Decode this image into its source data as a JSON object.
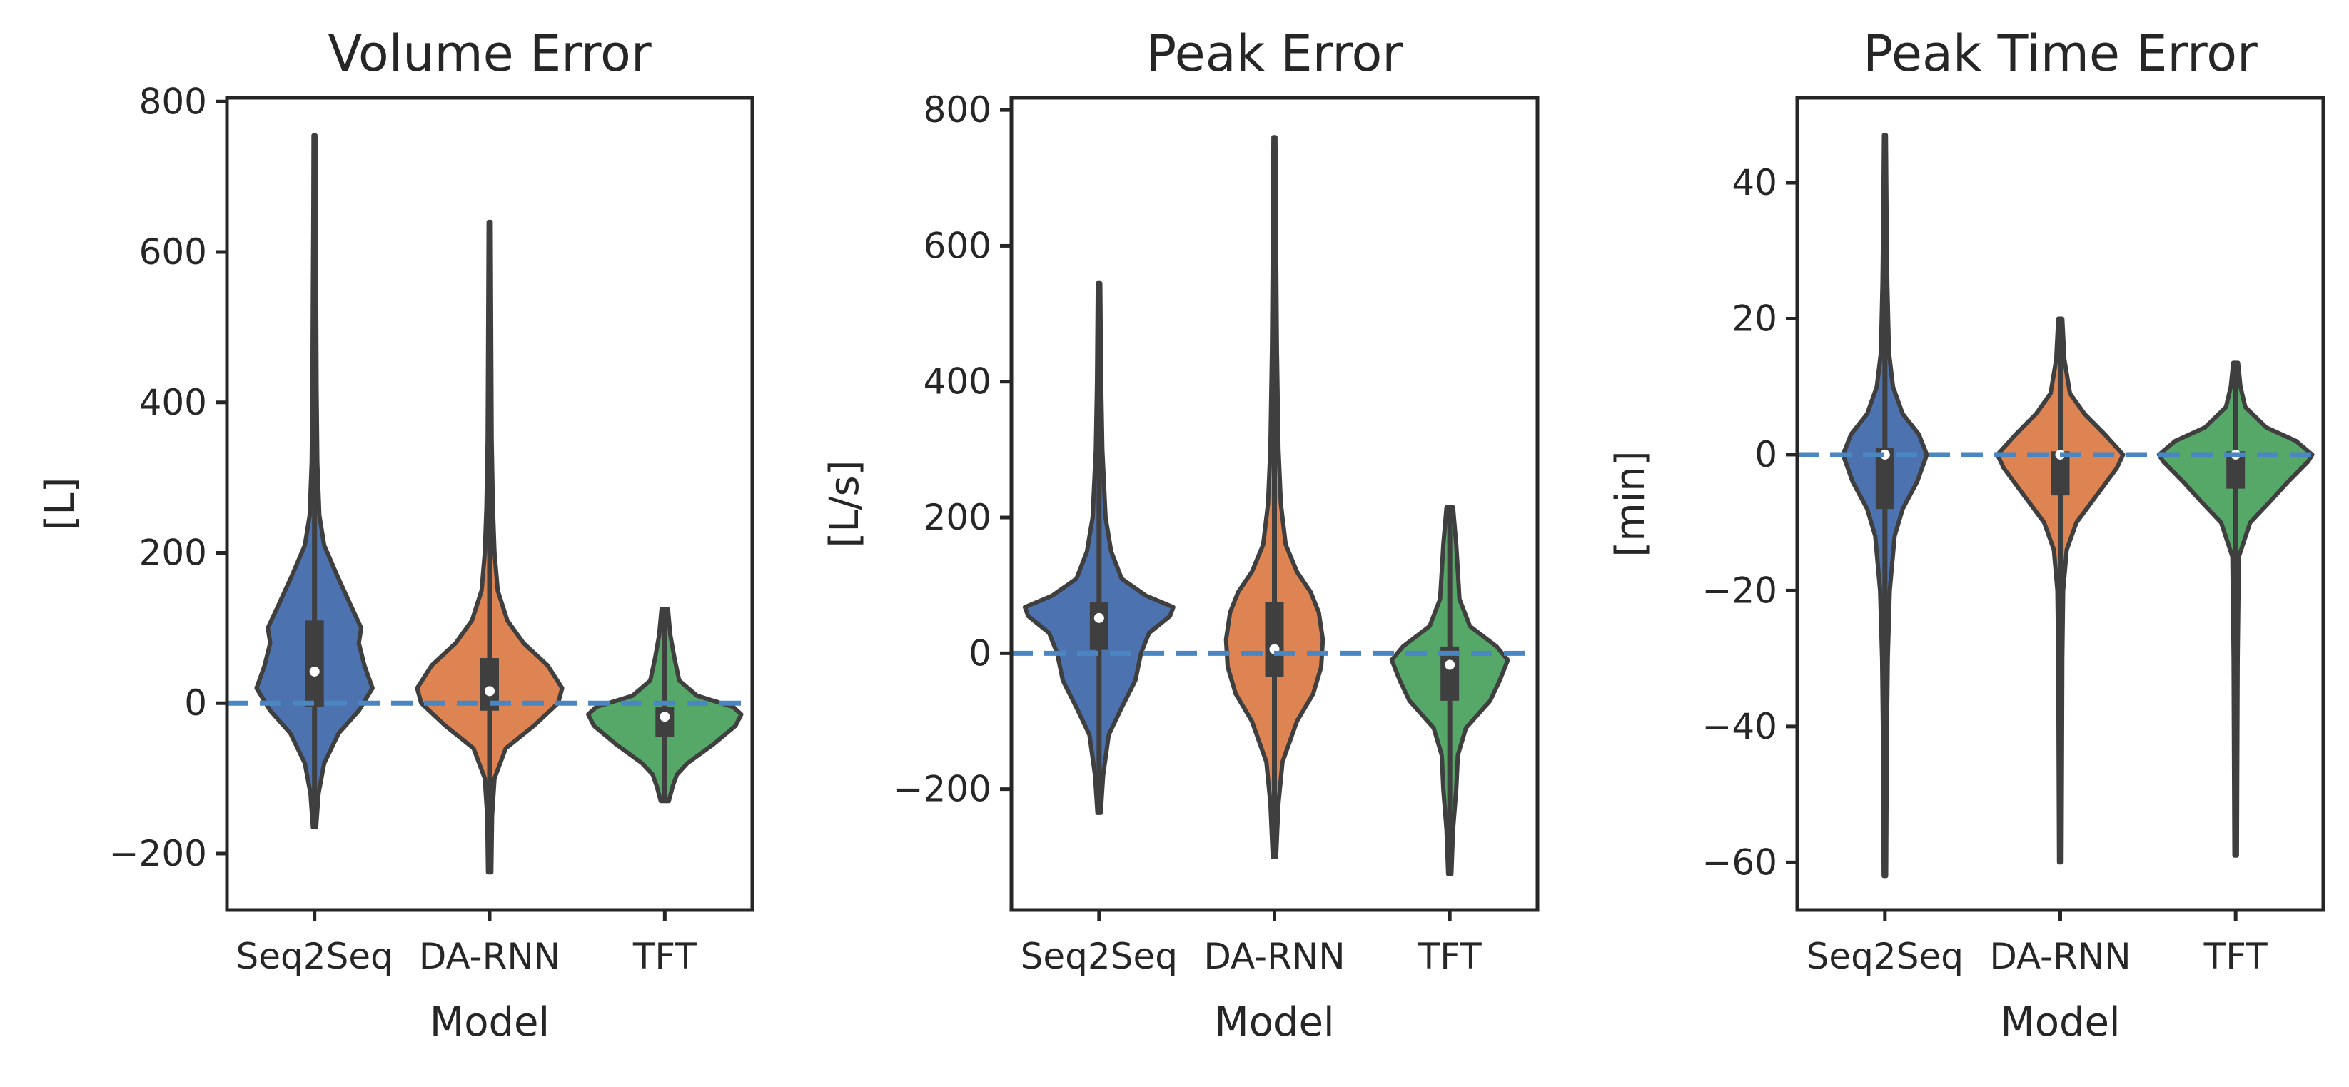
{
  "chart_data": [
    {
      "type": "violin",
      "title": "Volume Error",
      "xlabel": "Model",
      "ylabel": "[L]",
      "ylim": [
        -275,
        805
      ],
      "yticks": [
        -200,
        0,
        200,
        400,
        600,
        800
      ],
      "yticklabels": [
        "−200",
        "0",
        "200",
        "400",
        "600",
        "800"
      ],
      "categories": [
        "Seq2Seq",
        "DA-RNN",
        "TFT"
      ],
      "reference_line": 0,
      "series": [
        {
          "color": "#4c72b0",
          "min": -165,
          "max": 755,
          "q1": -5,
          "median": 42,
          "q3": 110,
          "density": [
            [
              -165,
              0.02
            ],
            [
              -120,
              0.05
            ],
            [
              -80,
              0.12
            ],
            [
              -40,
              0.3
            ],
            [
              -10,
              0.55
            ],
            [
              20,
              0.72
            ],
            [
              50,
              0.62
            ],
            [
              80,
              0.55
            ],
            [
              100,
              0.58
            ],
            [
              130,
              0.45
            ],
            [
              170,
              0.28
            ],
            [
              210,
              0.12
            ],
            [
              250,
              0.06
            ],
            [
              320,
              0.035
            ],
            [
              420,
              0.025
            ],
            [
              550,
              0.02
            ],
            [
              650,
              0.015
            ],
            [
              755,
              0.012
            ]
          ]
        },
        {
          "color": "#dd8452",
          "min": -225,
          "max": 640,
          "q1": -10,
          "median": 16,
          "q3": 60,
          "density": [
            [
              -225,
              0.02
            ],
            [
              -150,
              0.03
            ],
            [
              -100,
              0.06
            ],
            [
              -60,
              0.2
            ],
            [
              -30,
              0.55
            ],
            [
              0,
              0.85
            ],
            [
              20,
              0.9
            ],
            [
              50,
              0.72
            ],
            [
              80,
              0.42
            ],
            [
              110,
              0.22
            ],
            [
              150,
              0.1
            ],
            [
              200,
              0.06
            ],
            [
              260,
              0.04
            ],
            [
              350,
              0.025
            ],
            [
              450,
              0.02
            ],
            [
              550,
              0.016
            ],
            [
              640,
              0.012
            ]
          ]
        },
        {
          "color": "#55a868",
          "min": -130,
          "max": 125,
          "q1": -45,
          "median": -18,
          "q3": -5,
          "density": [
            [
              -130,
              0.05
            ],
            [
              -110,
              0.1
            ],
            [
              -95,
              0.15
            ],
            [
              -80,
              0.28
            ],
            [
              -55,
              0.6
            ],
            [
              -30,
              0.88
            ],
            [
              -15,
              0.95
            ],
            [
              -5,
              0.85
            ],
            [
              10,
              0.4
            ],
            [
              30,
              0.18
            ],
            [
              60,
              0.12
            ],
            [
              90,
              0.07
            ],
            [
              125,
              0.04
            ]
          ]
        }
      ]
    },
    {
      "type": "violin",
      "title": "Peak Error",
      "xlabel": "Model",
      "ylabel": "[L/s]",
      "ylim": [
        -378,
        818
      ],
      "yticks": [
        -200,
        0,
        200,
        400,
        600,
        800
      ],
      "yticklabels": [
        "−200",
        "0",
        "200",
        "400",
        "600",
        "800"
      ],
      "categories": [
        "Seq2Seq",
        "DA-RNN",
        "TFT"
      ],
      "reference_line": 0,
      "series": [
        {
          "color": "#4c72b0",
          "min": -235,
          "max": 545,
          "q1": 5,
          "median": 52,
          "q3": 75,
          "density": [
            [
              -235,
              0.02
            ],
            [
              -180,
              0.05
            ],
            [
              -120,
              0.12
            ],
            [
              -80,
              0.28
            ],
            [
              -40,
              0.45
            ],
            [
              0,
              0.52
            ],
            [
              30,
              0.62
            ],
            [
              55,
              0.88
            ],
            [
              68,
              0.92
            ],
            [
              85,
              0.58
            ],
            [
              110,
              0.28
            ],
            [
              150,
              0.15
            ],
            [
              200,
              0.08
            ],
            [
              300,
              0.04
            ],
            [
              400,
              0.025
            ],
            [
              545,
              0.015
            ]
          ]
        },
        {
          "color": "#dd8452",
          "min": -300,
          "max": 760,
          "q1": -35,
          "median": 6,
          "q3": 75,
          "density": [
            [
              -300,
              0.02
            ],
            [
              -220,
              0.05
            ],
            [
              -160,
              0.1
            ],
            [
              -100,
              0.28
            ],
            [
              -60,
              0.48
            ],
            [
              -20,
              0.58
            ],
            [
              20,
              0.6
            ],
            [
              60,
              0.55
            ],
            [
              90,
              0.45
            ],
            [
              120,
              0.28
            ],
            [
              160,
              0.14
            ],
            [
              220,
              0.08
            ],
            [
              300,
              0.05
            ],
            [
              450,
              0.03
            ],
            [
              600,
              0.02
            ],
            [
              760,
              0.012
            ]
          ]
        },
        {
          "color": "#55a868",
          "min": -325,
          "max": 215,
          "q1": -70,
          "median": -17,
          "q3": 10,
          "density": [
            [
              -325,
              0.02
            ],
            [
              -260,
              0.04
            ],
            [
              -200,
              0.08
            ],
            [
              -150,
              0.1
            ],
            [
              -110,
              0.2
            ],
            [
              -70,
              0.5
            ],
            [
              -40,
              0.62
            ],
            [
              -10,
              0.72
            ],
            [
              10,
              0.58
            ],
            [
              40,
              0.25
            ],
            [
              80,
              0.12
            ],
            [
              120,
              0.1
            ],
            [
              160,
              0.08
            ],
            [
              215,
              0.04
            ]
          ]
        }
      ]
    },
    {
      "type": "violin",
      "title": "Peak Time Error",
      "xlabel": "Model",
      "ylabel": "[min]",
      "ylim": [
        -67,
        52.5
      ],
      "yticks": [
        -60,
        -40,
        -20,
        0,
        20,
        40
      ],
      "yticklabels": [
        "−60",
        "−40",
        "−20",
        "0",
        "20",
        "40"
      ],
      "categories": [
        "Seq2Seq",
        "DA-RNN",
        "TFT"
      ],
      "reference_line": 0,
      "series": [
        {
          "color": "#4c72b0",
          "min": -62,
          "max": 47,
          "q1": -8,
          "median": 0,
          "q3": 1,
          "density": [
            [
              -62,
              0.015
            ],
            [
              -50,
              0.02
            ],
            [
              -40,
              0.025
            ],
            [
              -30,
              0.035
            ],
            [
              -20,
              0.06
            ],
            [
              -12,
              0.12
            ],
            [
              -8,
              0.22
            ],
            [
              -4,
              0.4
            ],
            [
              0,
              0.52
            ],
            [
              3,
              0.42
            ],
            [
              6,
              0.22
            ],
            [
              10,
              0.1
            ],
            [
              15,
              0.05
            ],
            [
              25,
              0.03
            ],
            [
              35,
              0.02
            ],
            [
              47,
              0.012
            ]
          ]
        },
        {
          "color": "#dd8452",
          "min": -60,
          "max": 20,
          "q1": -6,
          "median": 0,
          "q3": 0.5,
          "density": [
            [
              -60,
              0.015
            ],
            [
              -45,
              0.02
            ],
            [
              -30,
              0.025
            ],
            [
              -20,
              0.035
            ],
            [
              -14,
              0.08
            ],
            [
              -10,
              0.2
            ],
            [
              -6,
              0.45
            ],
            [
              -2,
              0.7
            ],
            [
              0,
              0.78
            ],
            [
              3,
              0.55
            ],
            [
              6,
              0.3
            ],
            [
              9,
              0.12
            ],
            [
              14,
              0.05
            ],
            [
              20,
              0.025
            ]
          ]
        },
        {
          "color": "#55a868",
          "min": -59,
          "max": 13.5,
          "q1": -5,
          "median": 0,
          "q3": 0.5,
          "density": [
            [
              -59,
              0.015
            ],
            [
              -45,
              0.02
            ],
            [
              -30,
              0.025
            ],
            [
              -15,
              0.04
            ],
            [
              -10,
              0.18
            ],
            [
              -7,
              0.42
            ],
            [
              -4,
              0.65
            ],
            [
              -1,
              0.9
            ],
            [
              0,
              0.95
            ],
            [
              2,
              0.75
            ],
            [
              4,
              0.38
            ],
            [
              7,
              0.12
            ],
            [
              10,
              0.06
            ],
            [
              13.5,
              0.03
            ]
          ]
        }
      ]
    }
  ]
}
